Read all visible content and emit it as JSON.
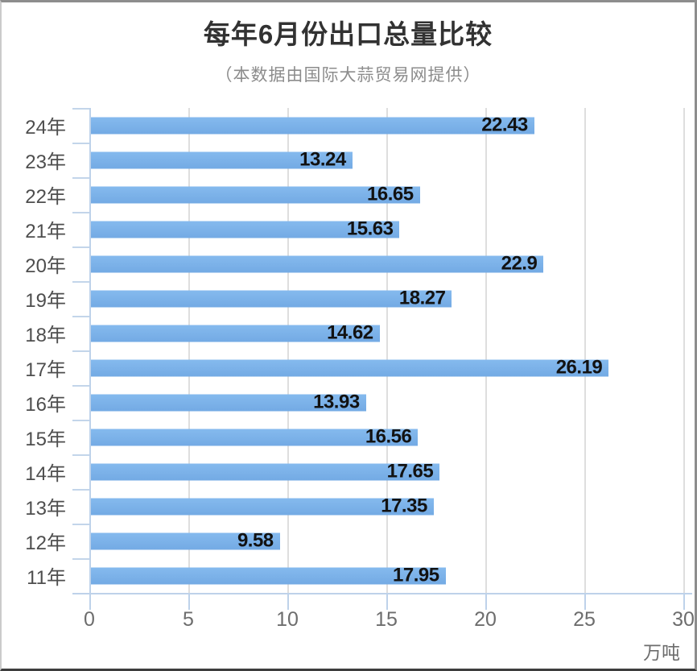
{
  "chart_data": {
    "type": "bar",
    "orientation": "horizontal",
    "title": "每年6月份出口总量比较",
    "subtitle": "（本数据由国际大蒜贸易网提供）",
    "x_unit_label": "万吨",
    "xlim": [
      0,
      30
    ],
    "x_ticks": [
      0,
      5,
      10,
      15,
      20,
      25,
      30
    ],
    "grid": true,
    "legend_position": "none",
    "value_label_position": "inside-end",
    "bar_color": "#7CB2E9",
    "value_label_color": "#121212",
    "categories": [
      "24年",
      "23年",
      "22年",
      "21年",
      "20年",
      "19年",
      "18年",
      "17年",
      "16年",
      "15年",
      "14年",
      "13年",
      "12年",
      "11年"
    ],
    "values": [
      22.43,
      13.24,
      16.65,
      15.63,
      22.9,
      18.27,
      14.62,
      26.19,
      13.93,
      16.56,
      17.65,
      17.35,
      9.58,
      17.95
    ],
    "value_labels": [
      "22.43",
      "13.24",
      "16.65",
      "15.63",
      "22.9",
      "18.27",
      "14.62",
      "26.19",
      "13.93",
      "16.56",
      "17.65",
      "17.35",
      "9.58",
      "17.95"
    ]
  }
}
